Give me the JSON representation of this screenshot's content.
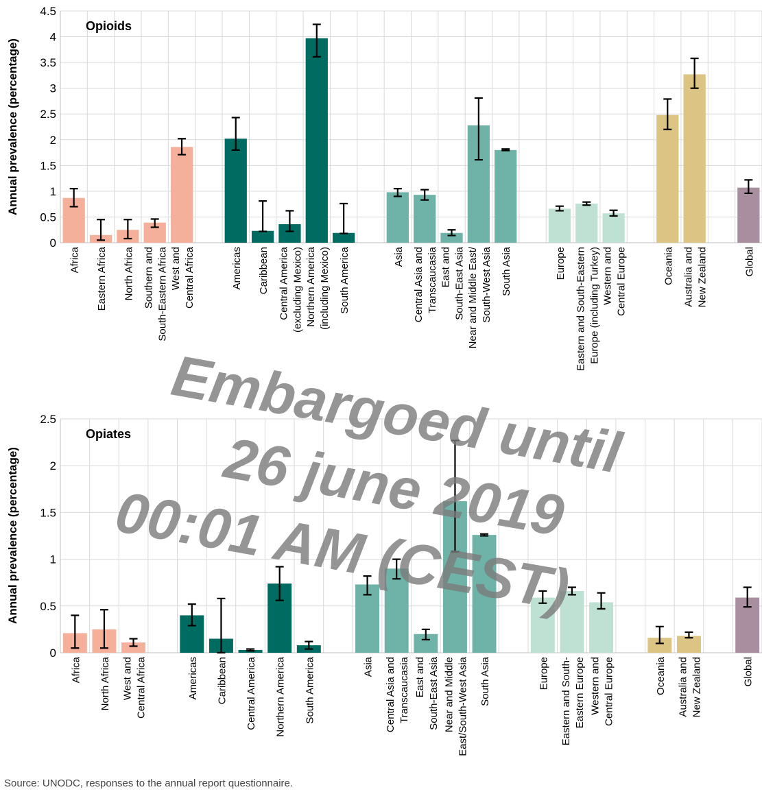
{
  "source_note": "Source: UNODC, responses to the annual report questionnaire.",
  "watermark_lines": [
    "Embargoed until",
    "26 june 2019",
    "00:01 AM (CEST)"
  ],
  "colors": {
    "africa": "#f4b09a",
    "americas": "#006b61",
    "asia": "#6fb3a8",
    "europe": "#bfe1d4",
    "oceania": "#dcc584",
    "global": "#a88e9e",
    "error_bar": "#000000"
  },
  "chart_data": [
    {
      "type": "bar",
      "title": "Opioids",
      "ylabel": "Annual prevalence (percentage)",
      "xlabel": "",
      "ylim": [
        0,
        4.5
      ],
      "yticks": [
        0,
        0.5,
        1,
        1.5,
        2,
        2.5,
        3,
        3.5,
        4,
        4.5
      ],
      "ytick_labels": [
        "0",
        "0.5",
        "1",
        "1.5",
        "2",
        "2.5",
        "3",
        "3.5",
        "4",
        "4.5"
      ],
      "grid": true,
      "legend": "none",
      "categories": [
        [
          "Africa"
        ],
        [
          "Eastern Africa"
        ],
        [
          "North Africa"
        ],
        [
          "Southern and",
          "South-Eastern Africa"
        ],
        [
          "West and",
          "Central Africa"
        ],
        [
          ""
        ],
        [
          "Americas"
        ],
        [
          "Caribbean"
        ],
        [
          "Central America",
          "(excluding Mexico)"
        ],
        [
          "Northern America",
          "(including Mexico)"
        ],
        [
          "South America"
        ],
        [
          ""
        ],
        [
          "Asia"
        ],
        [
          "Central Asia and",
          "Transcaucasia"
        ],
        [
          "East and",
          "South-East Asia"
        ],
        [
          "Near and Middle East/",
          "South-West Asia"
        ],
        [
          "South Asia"
        ],
        [
          ""
        ],
        [
          "Europe"
        ],
        [
          "Eastern and South-Eastern",
          "Europe (including Turkey)"
        ],
        [
          "Western and",
          "Central Europe"
        ],
        [
          ""
        ],
        [
          "Oceania"
        ],
        [
          "Australia and",
          "New Zealand"
        ],
        [
          ""
        ],
        [
          "Global"
        ]
      ],
      "values": [
        0.87,
        0.15,
        0.25,
        0.39,
        1.86,
        null,
        2.02,
        0.23,
        0.36,
        3.97,
        0.19,
        null,
        0.98,
        0.93,
        0.19,
        2.28,
        1.8,
        null,
        0.66,
        0.76,
        0.57,
        null,
        2.48,
        3.27,
        null,
        1.07
      ],
      "error_low": [
        0.7,
        0.05,
        0.08,
        0.3,
        1.71,
        null,
        1.8,
        0.22,
        0.22,
        3.61,
        0.18,
        null,
        0.9,
        0.83,
        0.14,
        1.61,
        1.79,
        null,
        0.62,
        0.73,
        0.52,
        null,
        2.2,
        3.0,
        null,
        0.96
      ],
      "error_high": [
        1.05,
        0.45,
        0.45,
        0.46,
        2.02,
        null,
        2.43,
        0.81,
        0.62,
        4.24,
        0.76,
        null,
        1.05,
        1.03,
        0.25,
        2.81,
        1.82,
        null,
        0.71,
        0.79,
        0.63,
        null,
        2.79,
        3.58,
        null,
        1.22
      ],
      "groups": [
        "africa",
        "africa",
        "africa",
        "africa",
        "africa",
        null,
        "americas",
        "americas",
        "americas",
        "americas",
        "americas",
        null,
        "asia",
        "asia",
        "asia",
        "asia",
        "asia",
        null,
        "europe",
        "europe",
        "europe",
        null,
        "oceania",
        "oceania",
        null,
        "global"
      ]
    },
    {
      "type": "bar",
      "title": "Opiates",
      "ylabel": "Annual prevalence (percentage)",
      "xlabel": "",
      "ylim": [
        0,
        2.5
      ],
      "yticks": [
        0,
        0.5,
        1,
        1.5,
        2,
        2.5
      ],
      "ytick_labels": [
        "0",
        "0.5",
        "1",
        "1.5",
        "2",
        "2.5"
      ],
      "grid": true,
      "legend": "none",
      "categories": [
        [
          "Africa"
        ],
        [
          "North Africa"
        ],
        [
          "West and",
          "Central Africa"
        ],
        [
          ""
        ],
        [
          "Americas"
        ],
        [
          "Caribbean"
        ],
        [
          "Central America"
        ],
        [
          "Northern America"
        ],
        [
          "South America"
        ],
        [
          ""
        ],
        [
          "Asia"
        ],
        [
          "Central Asia and",
          "Transcaucasia"
        ],
        [
          "East and",
          "South-East Asia"
        ],
        [
          "Near and Middle",
          "East/South-West Asia"
        ],
        [
          "South Asia"
        ],
        [
          ""
        ],
        [
          "Europe"
        ],
        [
          "Eastern and South-",
          "Eastern Europe"
        ],
        [
          "Western and",
          "Central Europe"
        ],
        [
          ""
        ],
        [
          "Oceania"
        ],
        [
          "Australia and",
          "New Zealand"
        ],
        [
          ""
        ],
        [
          "Global"
        ]
      ],
      "values": [
        0.21,
        0.25,
        0.11,
        null,
        0.4,
        0.15,
        0.03,
        0.74,
        0.08,
        null,
        0.73,
        0.9,
        0.2,
        1.62,
        1.26,
        null,
        0.59,
        0.66,
        0.54,
        null,
        0.16,
        0.18,
        null,
        0.59
      ],
      "error_low": [
        0.05,
        0.05,
        0.07,
        null,
        0.29,
        0.0,
        0.02,
        0.56,
        0.04,
        null,
        0.62,
        0.79,
        0.14,
        1.08,
        1.25,
        null,
        0.53,
        0.62,
        0.47,
        null,
        0.1,
        0.16,
        null,
        0.49
      ],
      "error_high": [
        0.4,
        0.46,
        0.15,
        null,
        0.52,
        0.58,
        0.04,
        0.92,
        0.12,
        null,
        0.82,
        1.0,
        0.25,
        2.27,
        1.27,
        null,
        0.66,
        0.7,
        0.64,
        null,
        0.28,
        0.22,
        null,
        0.7
      ],
      "groups": [
        "africa",
        "africa",
        "africa",
        null,
        "americas",
        "americas",
        "americas",
        "americas",
        "americas",
        null,
        "asia",
        "asia",
        "asia",
        "asia",
        "asia",
        null,
        "europe",
        "europe",
        "europe",
        null,
        "oceania",
        "oceania",
        null,
        "global"
      ]
    }
  ]
}
